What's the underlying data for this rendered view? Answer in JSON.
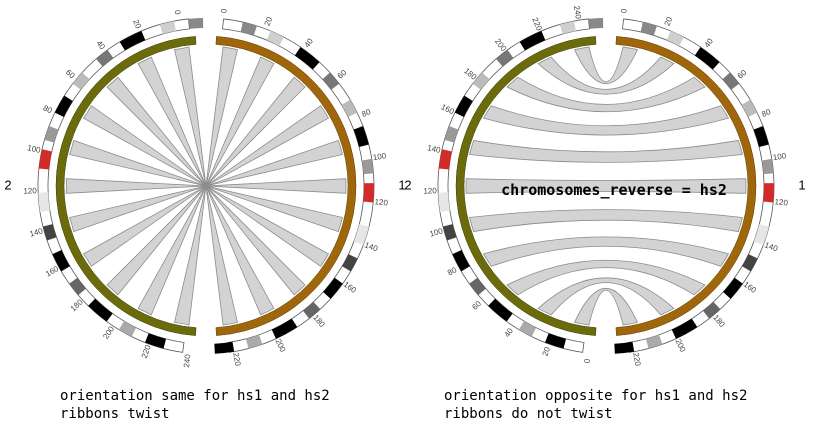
{
  "panels": [
    {
      "chr_a": {
        "name": "1",
        "ticks": [
          "0",
          "20",
          "40",
          "60",
          "80",
          "100",
          "120",
          "140",
          "160",
          "180",
          "200",
          "220"
        ]
      },
      "chr_b": {
        "name": "2",
        "ticks": [
          "240",
          "220",
          "200",
          "180",
          "160",
          "140",
          "120",
          "100",
          "80",
          "60",
          "40",
          "20",
          "0"
        ]
      },
      "annotation": "",
      "caption_line1": "orientation same for hs1 and hs2",
      "caption_line2": "ribbons twist"
    },
    {
      "chr_a": {
        "name": "1",
        "ticks": [
          "0",
          "20",
          "40",
          "60",
          "80",
          "100",
          "120",
          "140",
          "160",
          "180",
          "200",
          "220"
        ]
      },
      "chr_b": {
        "name": "2",
        "ticks": [
          "0",
          "20",
          "40",
          "60",
          "80",
          "100",
          "120",
          "140",
          "160",
          "180",
          "200",
          "220",
          "240"
        ]
      },
      "annotation": "chromosomes_reverse = hs2",
      "caption_line1": "orientation opposite for hs1 and hs2",
      "caption_line2": "ribbons do not twist"
    }
  ],
  "colors": {
    "hs1": "#a0670a",
    "hs2": "#6b6b0c",
    "highlight": "#d42a2a",
    "ribbon": "#d3d3d3"
  }
}
